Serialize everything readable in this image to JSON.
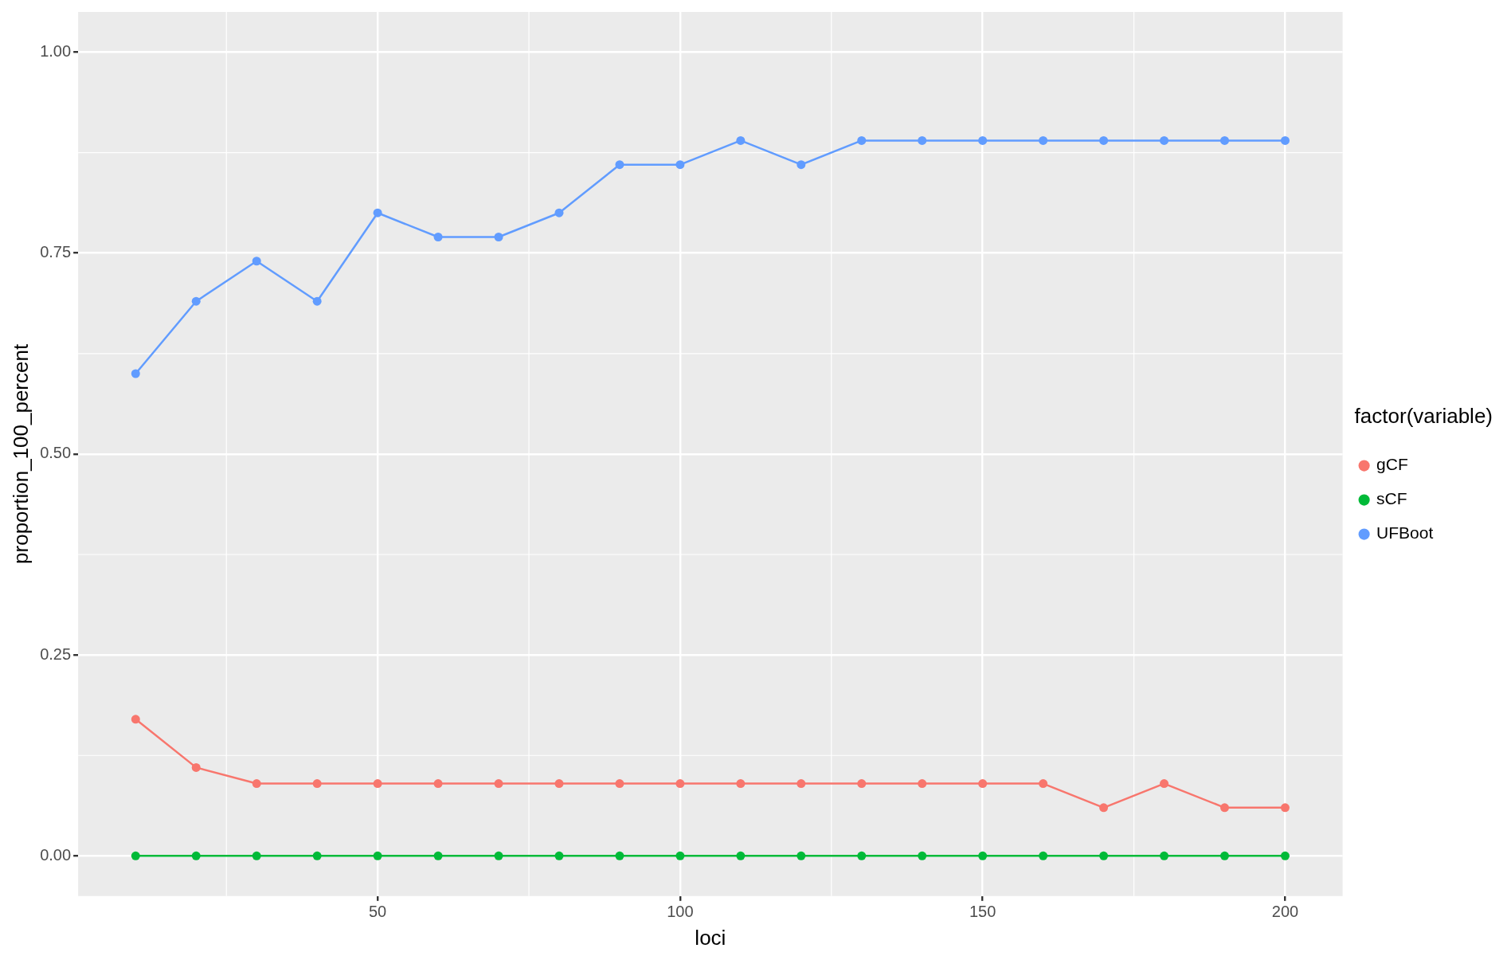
{
  "chart_data": {
    "type": "line",
    "xlabel": "loci",
    "ylabel": "proportion_100_percent",
    "legend_title": "factor(variable)",
    "x": [
      10,
      20,
      30,
      40,
      50,
      60,
      70,
      80,
      90,
      100,
      110,
      120,
      130,
      140,
      150,
      160,
      170,
      180,
      190,
      200
    ],
    "series": [
      {
        "name": "gCF",
        "color": "#f8766d",
        "values": [
          0.17,
          0.11,
          0.09,
          0.09,
          0.09,
          0.09,
          0.09,
          0.09,
          0.09,
          0.09,
          0.09,
          0.09,
          0.09,
          0.09,
          0.09,
          0.09,
          0.06,
          0.09,
          0.06,
          0.06
        ]
      },
      {
        "name": "sCF",
        "color": "#00ba38",
        "values": [
          0,
          0,
          0,
          0,
          0,
          0,
          0,
          0,
          0,
          0,
          0,
          0,
          0,
          0,
          0,
          0,
          0,
          0,
          0,
          0
        ]
      },
      {
        "name": "UFBoot",
        "color": "#619cff",
        "values": [
          0.6,
          0.69,
          0.74,
          0.69,
          0.8,
          0.77,
          0.77,
          0.8,
          0.86,
          0.86,
          0.89,
          0.86,
          0.89,
          0.89,
          0.89,
          0.89,
          0.89,
          0.89,
          0.89,
          0.89
        ]
      }
    ],
    "xlim": [
      0.5,
      209.5
    ],
    "xticks": [
      50,
      100,
      150,
      200
    ],
    "ylim": [
      -0.05,
      1.05
    ],
    "yticks": [
      {
        "value": 0,
        "label": "0.00"
      },
      {
        "value": 0.25,
        "label": "0.25"
      },
      {
        "value": 0.5,
        "label": "0.50"
      },
      {
        "value": 0.75,
        "label": "0.75"
      },
      {
        "value": 1,
        "label": "1.00"
      }
    ],
    "grid": true,
    "legend": "right",
    "marker": "circle",
    "line_style": "solid"
  }
}
